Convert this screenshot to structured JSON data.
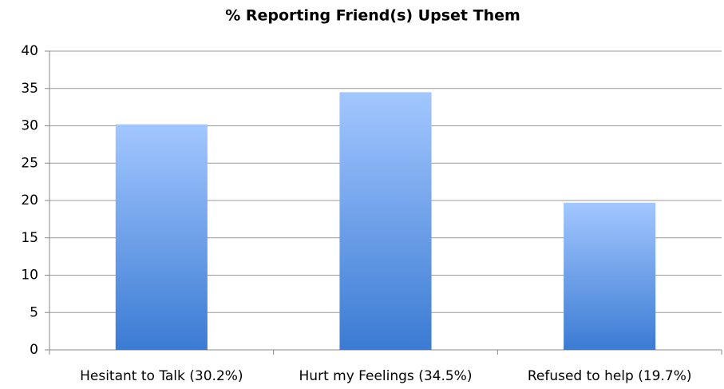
{
  "chart_data": {
    "type": "bar",
    "title": "% Reporting Friend(s) Upset Them",
    "categories": [
      "Hesitant to Talk (30.2%)",
      "Hurt my Feelings (34.5%)",
      "Refused to help (19.7%)"
    ],
    "values": [
      30.2,
      34.5,
      19.7
    ],
    "gradient": [
      "#a3c7ff",
      "#3b7bd3"
    ],
    "ylim": [
      0,
      40
    ],
    "yticks": [
      0,
      5,
      10,
      15,
      20,
      25,
      30,
      35,
      40
    ],
    "grid": true
  }
}
